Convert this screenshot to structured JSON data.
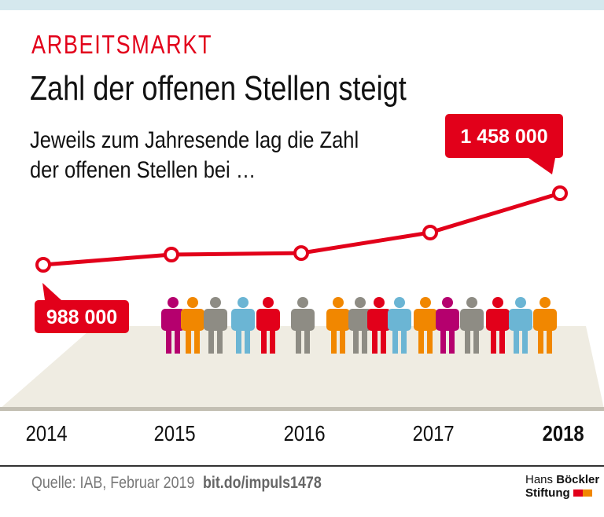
{
  "header": {
    "kicker": "ARBEITSMARKT",
    "title": "Zahl der offenen Stellen steigt",
    "subtitle_line1": "Jeweils zum Jahresende lag die Zahl",
    "subtitle_line2": "der offenen Stellen bei …"
  },
  "chart_data": {
    "type": "line",
    "x": [
      "2014",
      "2015",
      "2016",
      "2017",
      "2018"
    ],
    "values": [
      988000,
      1055000,
      1065000,
      1200000,
      1458000
    ],
    "labels": [
      {
        "x": "2014",
        "text": "988 000"
      },
      {
        "x": "2018",
        "text": "1 458 000"
      }
    ],
    "highlight_year": "2018",
    "line_color": "#e2001a",
    "grid": false,
    "figure_colors": [
      "#b5006e",
      "#f18700",
      "#8e8c84",
      "#6bb5d4",
      "#e2001a",
      "#8e8c84",
      "#f18700",
      "#8e8c84",
      "#e2001a",
      "#6bb5d4",
      "#f18700",
      "#b5006e",
      "#8e8c84",
      "#e2001a",
      "#6bb5d4",
      "#f18700"
    ]
  },
  "footer": {
    "source": "Quelle: IAB, Februar 2019",
    "link": "bit.do/impuls1478",
    "logo_line1a": "Hans ",
    "logo_line1b": "Böckler",
    "logo_line2": "Stiftung"
  }
}
